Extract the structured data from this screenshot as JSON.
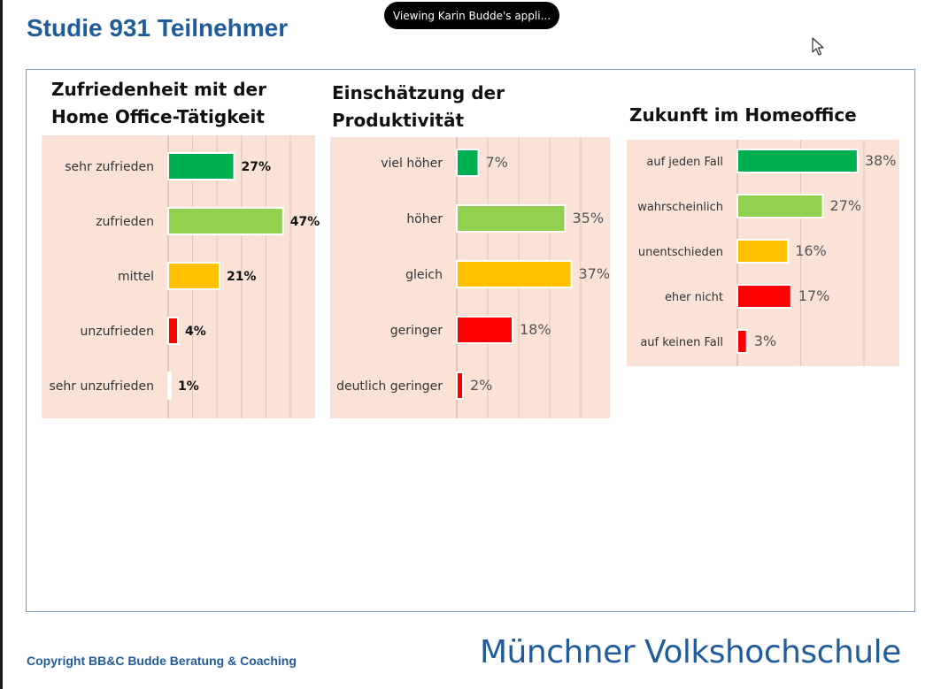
{
  "header": {
    "title": "Studie 931 Teilnehmer"
  },
  "share_banner": {
    "text": "Viewing Karin Budde's appli..."
  },
  "footer": {
    "copyright": "Copyright BB&C Budde Beratung & Coaching",
    "logo": "Münchner Volkshochschule"
  },
  "colors": {
    "green": "#00b050",
    "light_green": "#92d050",
    "yellow": "#ffc000",
    "red": "#ff0000",
    "panel_bg": "#fae3d6",
    "title_blue": "#1f5c99"
  },
  "chart_data": [
    {
      "type": "bar",
      "orientation": "horizontal",
      "title": "Zufriedenheit mit der Home Office-Tätigkeit",
      "title_lines": [
        "Zufriedenheit mit der",
        "Home Office-Tätigkeit"
      ],
      "categories": [
        "sehr zufrieden",
        "zufrieden",
        "mittel",
        "unzufrieden",
        "sehr unzufrieden"
      ],
      "values": [
        27,
        47,
        21,
        4,
        1
      ],
      "labels": [
        "27%",
        "47%",
        "21%",
        "4%",
        "1%"
      ],
      "colors": [
        "#00b050",
        "#92d050",
        "#ffc000",
        "#ff0000",
        "#ffffff"
      ],
      "xlim": [
        0,
        50
      ],
      "grid": true,
      "label_style": "bold"
    },
    {
      "type": "bar",
      "orientation": "horizontal",
      "title": "Einschätzung der Produktivität",
      "title_lines": [
        "Einschätzung der",
        "Produktivität"
      ],
      "categories": [
        "viel höher",
        "höher",
        "gleich",
        "geringer",
        "deutlich geringer"
      ],
      "values": [
        7,
        35,
        37,
        18,
        2
      ],
      "labels": [
        "7%",
        "35%",
        "37%",
        "18%",
        "2%"
      ],
      "colors": [
        "#00b050",
        "#92d050",
        "#ffc000",
        "#ff0000",
        "#ff0000"
      ],
      "xlim": [
        0,
        40
      ],
      "grid": true,
      "label_style": "normal"
    },
    {
      "type": "bar",
      "orientation": "horizontal",
      "title": "Zukunft im Homeoffice",
      "title_lines": [
        "Zukunft im Homeoffice"
      ],
      "categories": [
        "auf jeden Fall",
        "wahrscheinlich",
        "unentschieden",
        "eher nicht",
        "auf keinen Fall"
      ],
      "values": [
        38,
        27,
        16,
        17,
        3
      ],
      "labels": [
        "38%",
        "27%",
        "16%",
        "17%",
        "3%"
      ],
      "colors": [
        "#00b050",
        "#92d050",
        "#ffc000",
        "#ff0000",
        "#ff0000"
      ],
      "xlim": [
        0,
        40
      ],
      "grid": true,
      "label_style": "normal"
    }
  ]
}
